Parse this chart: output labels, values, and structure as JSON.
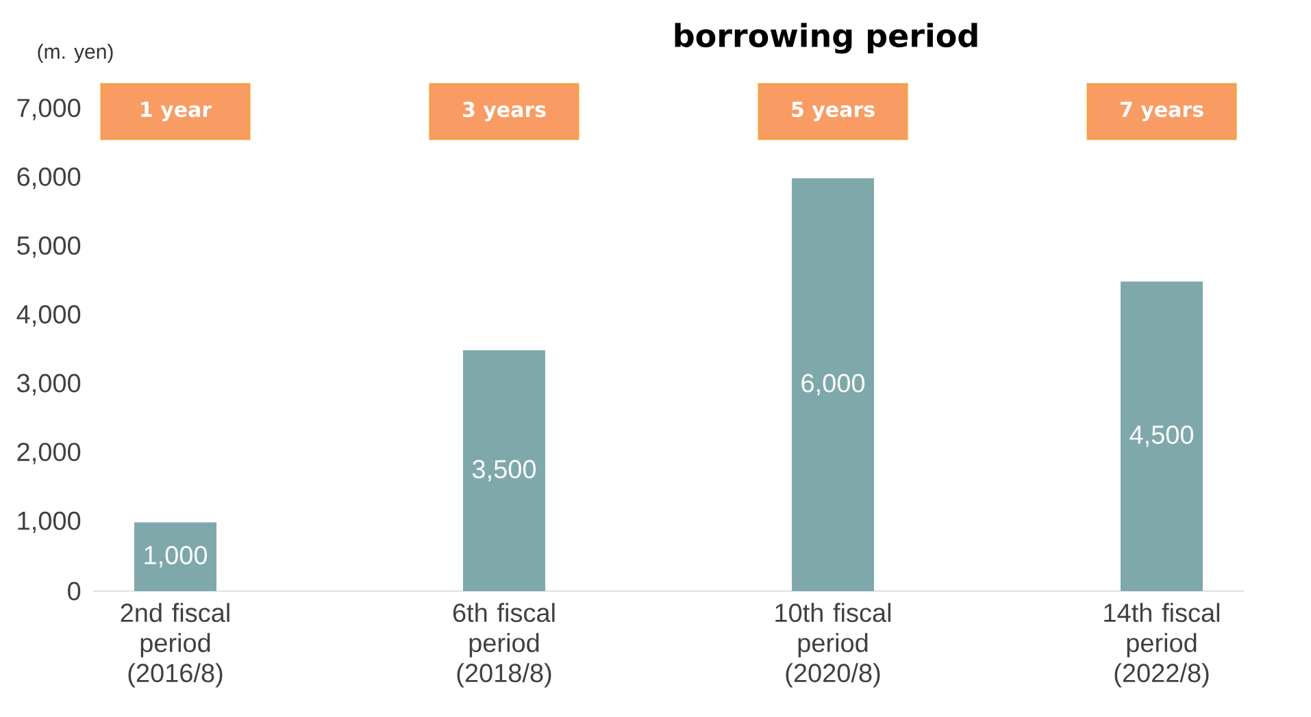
{
  "chart_data": {
    "type": "bar",
    "title": "borrowing period",
    "ylabel": "(m. yen)",
    "categories": [
      "2nd fiscal period (2016/8)",
      "6th fiscal period (2018/8)",
      "10th fiscal period (2020/8)",
      "14th fiscal period (2022/8)"
    ],
    "values": [
      1000,
      3500,
      6000,
      4500
    ],
    "color": "#7fa8aa",
    "ylim": [
      0,
      7000
    ],
    "yticks": [
      {
        "value": 0,
        "label": "0"
      },
      {
        "value": 1000,
        "label": "1,000"
      },
      {
        "value": 2000,
        "label": "2,000"
      },
      {
        "value": 3000,
        "label": "3,000"
      },
      {
        "value": 4000,
        "label": "4,000"
      },
      {
        "value": 5000,
        "label": "5,000"
      },
      {
        "value": 6000,
        "label": "6,000"
      },
      {
        "value": 7000,
        "label": "7,000"
      }
    ],
    "value_labels": [
      "1,000",
      "3,500",
      "6,000",
      "4,500"
    ],
    "annotations": [
      "1 year",
      "3 years",
      "5 years",
      "7 years"
    ]
  }
}
